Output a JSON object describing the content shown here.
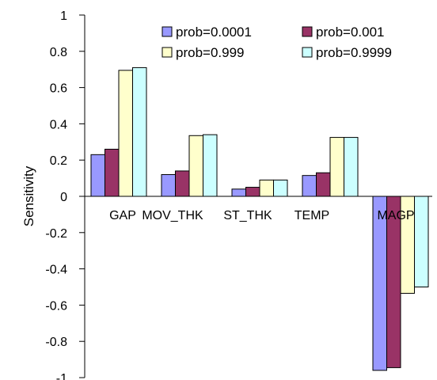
{
  "chart_data": {
    "type": "bar",
    "title": "",
    "xlabel": "",
    "ylabel": "Sensitivity",
    "ylim": [
      -1,
      1
    ],
    "yticks": [
      "1",
      "0.8",
      "0.6",
      "0.4",
      "0.2",
      "0",
      "-0.2",
      "-0.4",
      "-0.6",
      "-0.8",
      "-1"
    ],
    "categories": [
      "GAP",
      "MOV_THK",
      "ST_THK",
      "TEMP",
      "MAGP"
    ],
    "series": [
      {
        "name": "prob=0.0001",
        "color": "#9999ff",
        "values": [
          0.23,
          0.12,
          0.04,
          0.115,
          -0.96
        ]
      },
      {
        "name": "prob=0.001",
        "color": "#993366",
        "values": [
          0.26,
          0.14,
          0.05,
          0.13,
          -0.945
        ]
      },
      {
        "name": "prob=0.999",
        "color": "#ffffcc",
        "values": [
          0.695,
          0.335,
          0.09,
          0.325,
          -0.535
        ]
      },
      {
        "name": "prob=0.9999",
        "color": "#ccffff",
        "values": [
          0.71,
          0.34,
          0.09,
          0.325,
          -0.5
        ]
      }
    ],
    "legend_position": "top-right",
    "grid": false
  }
}
